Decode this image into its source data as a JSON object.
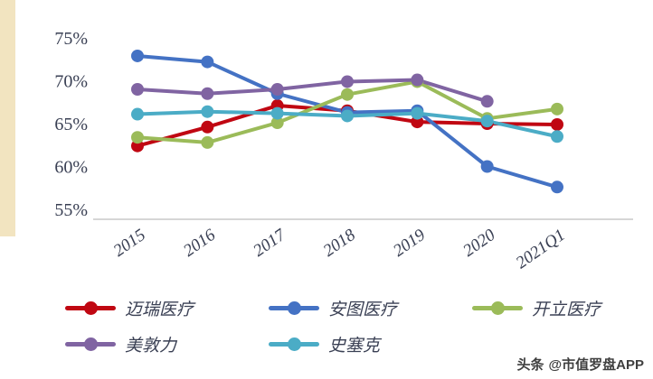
{
  "chart_data": {
    "type": "line",
    "title": "",
    "categories": [
      "2015",
      "2016",
      "2017",
      "2018",
      "2019",
      "2020",
      "2021Q1"
    ],
    "series": [
      {
        "name": "迈瑞医疗",
        "color": "#c00712",
        "values": [
          62.4,
          64.6,
          67.1,
          66.5,
          65.2,
          65.0,
          64.9
        ]
      },
      {
        "name": "安图医疗",
        "color": "#4472c4",
        "values": [
          72.9,
          72.2,
          68.5,
          66.3,
          66.5,
          60.0,
          57.6
        ]
      },
      {
        "name": "开立医疗",
        "color": "#9bbb59",
        "values": [
          63.4,
          62.8,
          65.1,
          68.4,
          69.9,
          65.6,
          66.7
        ]
      },
      {
        "name": "美敦力",
        "color": "#8064a2",
        "values": [
          69.0,
          68.5,
          69.0,
          69.9,
          70.1,
          67.6,
          null
        ]
      },
      {
        "name": "史塞克",
        "color": "#4bacc6",
        "values": [
          66.1,
          66.4,
          66.2,
          65.9,
          66.2,
          65.3,
          63.5
        ]
      }
    ],
    "ylim": [
      55,
      75
    ],
    "yticks": [
      55,
      60,
      65,
      70,
      75
    ],
    "ytick_suffix": "%",
    "grid": false,
    "legend_position": "bottom",
    "axis_line_color": "#c8c8c8",
    "tick_label_color": "#3a4054"
  },
  "accent": {
    "left_bar_color": "#f2e4c0"
  },
  "watermark": {
    "brand": "头条",
    "handle": "@市值罗盘APP"
  }
}
